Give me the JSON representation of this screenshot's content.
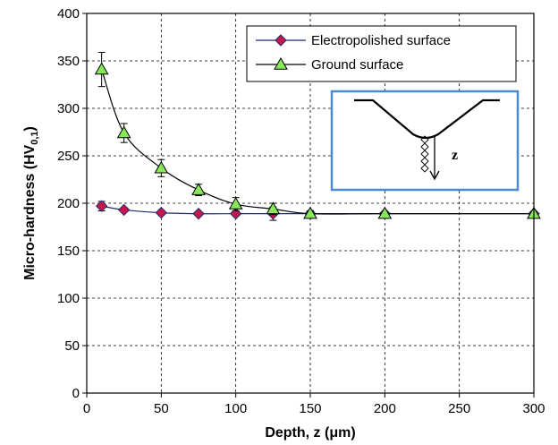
{
  "chart_data": {
    "type": "line",
    "xlabel": "Depth, z (μm)",
    "ylabel_main": "Micro-hardness (HV",
    "ylabel_sub": "0,1",
    "ylabel_end": ")",
    "xlim": [
      0,
      300
    ],
    "ylim": [
      0,
      400
    ],
    "xticks": [
      0,
      50,
      100,
      150,
      200,
      250,
      300
    ],
    "yticks": [
      0,
      50,
      100,
      150,
      200,
      250,
      300,
      350,
      400
    ],
    "grid": true,
    "legend_position": "top-right",
    "series": [
      {
        "name": "Electropolished surface",
        "marker": "diamond",
        "color": "#c8174a",
        "line_color": "#1f2a6e",
        "x": [
          10,
          25,
          50,
          75,
          100,
          125,
          150,
          200,
          300
        ],
        "y": [
          197,
          193,
          190,
          189,
          189,
          189,
          189,
          189,
          189
        ],
        "err": [
          5,
          2,
          2,
          2,
          2,
          7,
          2,
          2,
          2
        ]
      },
      {
        "name": "Ground surface",
        "marker": "triangle",
        "color": "#88e85a",
        "line_color": "#000000",
        "x": [
          10,
          25,
          50,
          75,
          100,
          125,
          150,
          200,
          300
        ],
        "y": [
          341,
          274,
          237,
          214,
          199,
          194,
          189,
          189,
          189
        ],
        "err": [
          18,
          10,
          9,
          6,
          7,
          6,
          3,
          2,
          2
        ]
      }
    ],
    "inset": {
      "label": "z",
      "border_color": "#4a8ad6"
    }
  }
}
